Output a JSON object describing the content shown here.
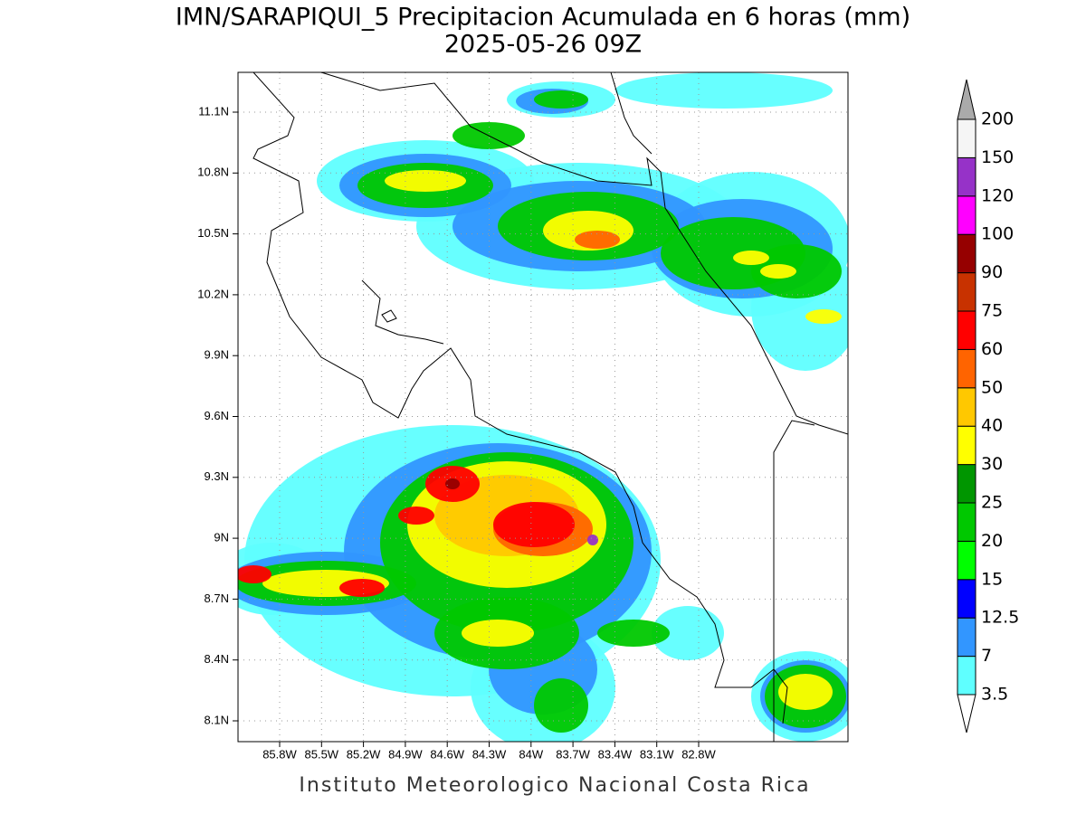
{
  "header": {
    "title": "IMN/SARAPIQUI_5 Precipitacion Acumulada en 6 horas (mm)",
    "subtitle": "2025-05-26 09Z"
  },
  "map": {
    "lat_ticks": [
      "11.1N",
      "10.8N",
      "10.5N",
      "10.2N",
      "9.9N",
      "9.6N",
      "9.3N",
      "9N",
      "8.7N",
      "8.4N",
      "8.1N"
    ],
    "lon_ticks": [
      "85.8W",
      "85.5W",
      "85.2W",
      "84.9W",
      "84.6W",
      "84.3W",
      "84W",
      "83.7W",
      "83.4W",
      "83.1W",
      "82.8W"
    ],
    "grid": true
  },
  "colorbar": {
    "levels": [
      3.5,
      7,
      12.5,
      15,
      20,
      25,
      30,
      40,
      50,
      60,
      75,
      90,
      100,
      120,
      150,
      200
    ],
    "colors": [
      "#5fffff",
      "#3296ff",
      "#0000ff",
      "#00ff00",
      "#00c800",
      "#009600",
      "#ffff00",
      "#ffc800",
      "#ff6400",
      "#ff0000",
      "#c83200",
      "#960000",
      "#ff00ff",
      "#9632c8",
      "#f5f5f5"
    ],
    "under_color": "#ffffff",
    "over_color": "#aaaaaa"
  },
  "footer": "Instituto Meteorologico Nacional Costa Rica"
}
